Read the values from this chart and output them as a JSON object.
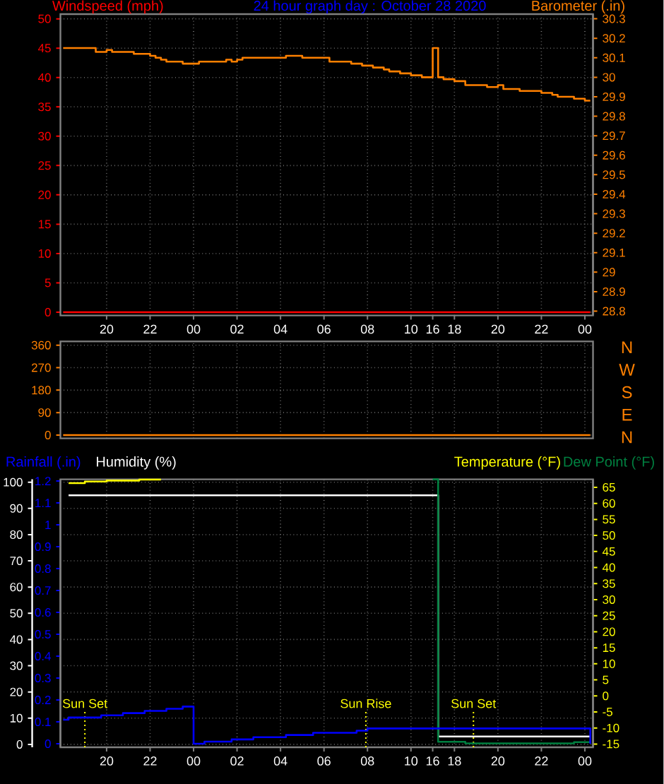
{
  "chart_data": [
    {
      "type": "step",
      "title": "24 hour graph day : October 28 2020",
      "categories": [
        null,
        null,
        null,
        null,
        null,
        null,
        null,
        null,
        "20",
        null,
        null,
        null,
        null,
        null,
        null,
        null,
        "22",
        null,
        null,
        null,
        null,
        null,
        null,
        null,
        "00",
        null,
        null,
        null,
        null,
        null,
        null,
        null,
        "02",
        null,
        null,
        null,
        null,
        null,
        null,
        null,
        "04",
        null,
        null,
        null,
        null,
        null,
        null,
        null,
        "06",
        null,
        null,
        null,
        null,
        null,
        null,
        null,
        "08",
        null,
        null,
        null,
        null,
        null,
        null,
        null,
        "10",
        null,
        null,
        null,
        "16",
        null,
        null,
        null,
        "18",
        null,
        null,
        null,
        null,
        null,
        null,
        null,
        "20",
        null,
        null,
        null,
        null,
        null,
        null,
        null,
        "22",
        null,
        null,
        null,
        null,
        null,
        null,
        null,
        "00",
        null
      ],
      "ylim": [
        -0.55,
        50.8
      ],
      "yticks": [
        0,
        5,
        10,
        15,
        20,
        25,
        30,
        35,
        40,
        45,
        50
      ],
      "y2lim": [
        28.778,
        30.324
      ],
      "y2ticks": [
        28.8,
        28.9,
        29,
        29.1,
        29.2,
        29.3,
        29.4,
        29.5,
        29.6,
        29.7,
        29.8,
        29.9,
        30,
        30.1,
        30.2,
        30.3
      ],
      "grid": true,
      "series": [
        {
          "name": "Windspeed (mph)",
          "color": "#ff0000",
          "values": [
            0,
            0,
            0,
            0,
            0,
            0,
            0,
            0,
            0,
            0,
            0,
            0,
            0,
            0,
            0,
            0,
            0,
            0,
            0,
            0,
            0,
            0,
            0,
            0,
            0,
            0,
            0,
            0,
            0,
            0,
            0,
            0,
            0,
            0,
            0,
            0,
            0,
            0,
            0,
            0,
            0,
            0,
            0,
            0,
            0,
            0,
            0,
            0,
            0,
            0,
            0,
            0,
            0,
            0,
            0,
            0,
            0,
            0,
            0,
            0,
            0,
            0,
            0,
            0,
            0,
            0,
            0,
            0,
            0,
            0,
            0,
            0,
            0,
            0,
            0,
            0,
            0,
            0,
            0,
            0,
            0,
            0,
            0,
            0,
            0,
            0,
            0,
            0,
            0,
            0,
            0,
            0,
            0,
            0,
            0,
            0,
            0,
            0
          ]
        },
        {
          "name": "Barometer (.in)",
          "color": "#ff8000",
          "axis": "y2",
          "values": [
            30.15,
            30.15,
            30.15,
            30.15,
            30.15,
            30.15,
            30.13,
            30.13,
            30.14,
            30.13,
            30.13,
            30.13,
            30.13,
            30.12,
            30.12,
            30.12,
            30.11,
            30.1,
            30.09,
            30.08,
            30.08,
            30.08,
            30.07,
            30.07,
            30.07,
            30.08,
            30.08,
            30.08,
            30.08,
            30.08,
            30.09,
            30.08,
            30.09,
            30.1,
            30.1,
            30.1,
            30.1,
            30.1,
            30.1,
            30.1,
            30.1,
            30.11,
            30.11,
            30.11,
            30.1,
            30.1,
            30.1,
            30.1,
            30.1,
            30.08,
            30.08,
            30.08,
            30.08,
            30.07,
            30.07,
            30.06,
            30.06,
            30.05,
            30.05,
            30.04,
            30.03,
            30.03,
            30.02,
            30.02,
            30.01,
            30.01,
            30.0,
            30.0,
            30.15,
            30.0,
            29.99,
            29.99,
            29.98,
            29.98,
            29.96,
            29.96,
            29.96,
            29.96,
            29.95,
            29.95,
            29.96,
            29.94,
            29.94,
            29.94,
            29.93,
            29.93,
            29.93,
            29.93,
            29.92,
            29.92,
            29.91,
            29.9,
            29.9,
            29.9,
            29.89,
            29.89,
            29.88,
            29.88
          ]
        }
      ]
    },
    {
      "type": "step",
      "categories": [
        null,
        null,
        null,
        null,
        null,
        null,
        null,
        null,
        "20",
        null,
        null,
        null,
        null,
        null,
        null,
        null,
        "22",
        null,
        null,
        null,
        null,
        null,
        null,
        null,
        "00",
        null,
        null,
        null,
        null,
        null,
        null,
        null,
        "02",
        null,
        null,
        null,
        null,
        null,
        null,
        null,
        "04",
        null,
        null,
        null,
        null,
        null,
        null,
        null,
        "06",
        null,
        null,
        null,
        null,
        null,
        null,
        null,
        "08",
        null,
        null,
        null,
        null,
        null,
        null,
        null,
        "10",
        null,
        null,
        null,
        "16",
        null,
        null,
        null,
        "18",
        null,
        null,
        null,
        null,
        null,
        null,
        null,
        "20",
        null,
        null,
        null,
        null,
        null,
        null,
        null,
        "22",
        null,
        null,
        null,
        null,
        null,
        null,
        null,
        "00",
        null
      ],
      "tick_labels": "y",
      "ylim": [
        -13,
        375
      ],
      "yticks": [
        0,
        90,
        180,
        270,
        360
      ],
      "grid": true,
      "series": [
        {
          "color": "#ff8000",
          "values": [
            0,
            0,
            0,
            0,
            0,
            0,
            0,
            0,
            0,
            0,
            0,
            0,
            0,
            0,
            0,
            0,
            0,
            0,
            0,
            0,
            0,
            0,
            0,
            0,
            0,
            0,
            0,
            0,
            0,
            0,
            0,
            0,
            0,
            0,
            0,
            0,
            0,
            0,
            0,
            0,
            0,
            0,
            0,
            0,
            0,
            0,
            0,
            0,
            0,
            0,
            0,
            0,
            0,
            0,
            0,
            0,
            0,
            0,
            0,
            0,
            0,
            0,
            0,
            0,
            0,
            0,
            0,
            0,
            0,
            0,
            0,
            0,
            0,
            0,
            0,
            0,
            0,
            0,
            0,
            0,
            0,
            0,
            0,
            0,
            0,
            0,
            0,
            0,
            0,
            0,
            0,
            0,
            0,
            0,
            0,
            0,
            0,
            0
          ]
        }
      ],
      "annotations": [
        "N",
        "W",
        "S",
        "E",
        "N"
      ]
    },
    {
      "type": "step",
      "categories": [
        null,
        null,
        null,
        null,
        null,
        null,
        null,
        null,
        "20",
        null,
        null,
        null,
        null,
        null,
        null,
        null,
        "22",
        null,
        null,
        null,
        null,
        null,
        null,
        null,
        "00",
        null,
        null,
        null,
        null,
        null,
        null,
        null,
        "02",
        null,
        null,
        null,
        null,
        null,
        null,
        null,
        "04",
        null,
        null,
        null,
        null,
        null,
        null,
        null,
        "06",
        null,
        null,
        null,
        null,
        null,
        null,
        null,
        "08",
        null,
        null,
        null,
        null,
        null,
        null,
        null,
        "10",
        null,
        null,
        null,
        "16",
        null,
        null,
        null,
        "18",
        null,
        null,
        null,
        null,
        null,
        null,
        null,
        "20",
        null,
        null,
        null,
        null,
        null,
        null,
        null,
        "22",
        null,
        null,
        null,
        null,
        null,
        null,
        null,
        "00",
        null
      ],
      "ylim": [
        -1.1,
        101.1
      ],
      "yticks": [
        0,
        10,
        20,
        30,
        40,
        50,
        60,
        70,
        80,
        90,
        100
      ],
      "y2lim": [
        -16,
        67.5
      ],
      "y2ticks": [
        -15,
        -10,
        -5,
        0,
        5,
        10,
        15,
        20,
        25,
        30,
        35,
        40,
        45,
        50,
        55,
        60,
        65
      ],
      "y3lim": [
        -0.016,
        1.208
      ],
      "y3ticks": [
        0,
        0.1,
        0.2,
        0.3,
        0.4,
        0.5,
        0.6,
        0.7,
        0.8,
        0.9,
        1,
        1.1,
        1.2
      ],
      "grid": true,
      "series": [
        {
          "name": "Rainfall (.in)",
          "color": "#0000ff",
          "axis": "y3",
          "values": [
            0.11,
            0.12,
            0.12,
            0.12,
            0.12,
            0.12,
            0.12,
            0.13,
            0.13,
            0.13,
            0.13,
            0.14,
            0.14,
            0.14,
            0.14,
            0.15,
            0.15,
            0.15,
            0.15,
            0.16,
            0.16,
            0.16,
            0.17,
            0.17,
            0,
            0,
            0.01,
            0.01,
            0.01,
            0.01,
            0.01,
            0.02,
            0.02,
            0.02,
            0.02,
            0.03,
            0.03,
            0.03,
            0.03,
            0.03,
            0.03,
            0.04,
            0.04,
            0.04,
            0.04,
            0.04,
            0.05,
            0.05,
            0.05,
            0.05,
            0.05,
            0.05,
            0.05,
            0.05,
            0.06,
            0.06,
            0.07,
            0.07,
            0.07,
            0.07,
            0.07,
            0.07,
            0.07,
            0.07,
            0.07,
            0.07,
            0.07,
            0.07,
            0.07,
            0.07,
            0.07,
            0.07,
            0.07,
            0.07,
            0.07,
            0.07,
            0.07,
            0.07,
            0.07,
            0.07,
            0.07,
            0.07,
            0.07,
            0.07,
            0.07,
            0.07,
            0.07,
            0.07,
            0.07,
            0.07,
            0.07,
            0.07,
            0.07,
            0.07,
            0.07,
            0.07,
            0.07,
            0
          ]
        },
        {
          "name": "Humidity (%)",
          "color": "#ffffff",
          "values": [
            null,
            95,
            95,
            95,
            95,
            95,
            95,
            95,
            95,
            95,
            95,
            95,
            95,
            95,
            95,
            95,
            95,
            95,
            95,
            95,
            95,
            95,
            95,
            95,
            95,
            95,
            95,
            95,
            95,
            95,
            95,
            95,
            95,
            95,
            95,
            95,
            95,
            95,
            95,
            95,
            95,
            95,
            95,
            95,
            95,
            95,
            95,
            95,
            95,
            95,
            95,
            95,
            95,
            95,
            95,
            95,
            95,
            95,
            95,
            95,
            95,
            95,
            95,
            95,
            95,
            95,
            95,
            95,
            95,
            3,
            3,
            3,
            3,
            3,
            3,
            3,
            3,
            3,
            3,
            3,
            3,
            3,
            3,
            3,
            3,
            3,
            3,
            3,
            3,
            3,
            3,
            3,
            3,
            3,
            3,
            3,
            3,
            3
          ]
        },
        {
          "name": "Temperature (°F)",
          "color": "#ffff00",
          "axis": "y2",
          "values": [
            null,
            66.3,
            66.3,
            66.3,
            66.8,
            66.8,
            66.8,
            66.8,
            67.1,
            67.1,
            67.1,
            67.1,
            67.1,
            67.1,
            67.4,
            67.4,
            67.4,
            67.4,
            67.4,
            null,
            null,
            null,
            null,
            null,
            null,
            null,
            null,
            null,
            null,
            null,
            null,
            null,
            null,
            null,
            null,
            null,
            null,
            null,
            null,
            null,
            null,
            null,
            null,
            null,
            null,
            null,
            null,
            null,
            null,
            null,
            null,
            null,
            null,
            null,
            null,
            null,
            null,
            null,
            null,
            null,
            null,
            null,
            null,
            null,
            null,
            null,
            null,
            null,
            null,
            null,
            null,
            null,
            null,
            null,
            null,
            null,
            null,
            null,
            null,
            null,
            null,
            null,
            null,
            null,
            null,
            null,
            null,
            null,
            null,
            null,
            null,
            null,
            null,
            null,
            null,
            null,
            null,
            null
          ]
        },
        {
          "name": "Dew Point (°F)",
          "color": "#008040",
          "axis": "y2",
          "values": [
            null,
            null,
            null,
            null,
            null,
            null,
            null,
            null,
            null,
            null,
            null,
            null,
            null,
            null,
            null,
            null,
            null,
            null,
            null,
            null,
            null,
            null,
            null,
            null,
            null,
            null,
            null,
            null,
            null,
            null,
            null,
            null,
            null,
            null,
            null,
            null,
            null,
            null,
            null,
            null,
            null,
            null,
            null,
            null,
            null,
            null,
            null,
            null,
            null,
            null,
            null,
            null,
            null,
            null,
            null,
            null,
            null,
            null,
            null,
            null,
            null,
            null,
            null,
            null,
            null,
            null,
            null,
            null,
            67.5,
            -14.3,
            -14.3,
            -14.3,
            -14.3,
            -14.3,
            -14.8,
            -14.8,
            -14.8,
            -14.8,
            -14.8,
            -14.8,
            -14.8,
            -14.8,
            -14.8,
            -14.8,
            -14.8,
            -14.8,
            -14.8,
            -14.8,
            -14.8,
            -14.8,
            -14.8,
            -14.8,
            -14.8,
            -14.8,
            -14.4,
            -14.4,
            -14.4,
            -14.4
          ]
        }
      ],
      "annotations": [
        {
          "text": "Sun Set"
        },
        {
          "text": "Sun Rise"
        },
        {
          "text": "Sun Set"
        }
      ]
    }
  ]
}
